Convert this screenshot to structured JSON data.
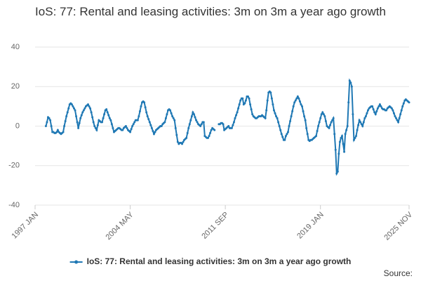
{
  "chart_data": {
    "type": "line",
    "title": "IoS: 77: Rental and leasing activities: 3m on 3m a year ago growth",
    "source": "Source:",
    "categories": [
      "1997 JAN",
      null,
      null,
      null,
      null,
      null,
      null,
      null,
      null,
      null,
      null,
      null,
      null,
      null,
      null,
      null,
      null,
      null,
      null,
      null,
      null,
      null,
      null,
      null,
      null,
      null,
      null,
      null,
      null,
      null,
      null,
      null,
      null,
      null,
      null,
      null,
      null,
      null,
      null,
      null,
      null,
      null,
      null,
      null,
      null,
      null,
      null,
      null,
      null,
      null,
      null,
      null,
      null,
      null,
      null,
      null,
      null,
      null,
      null,
      null,
      null,
      null,
      null,
      null,
      null,
      null,
      null,
      null,
      null,
      null,
      null,
      null,
      null,
      null,
      null,
      null,
      null,
      null,
      null,
      null,
      null,
      null,
      null,
      null,
      null,
      null,
      null,
      null,
      "2004 MAY",
      null,
      null,
      null,
      null,
      null,
      null,
      null,
      null,
      null,
      null,
      null,
      null,
      null,
      null,
      null,
      null,
      null,
      null,
      null,
      null,
      null,
      null,
      null,
      null,
      null,
      null,
      null,
      null,
      null,
      null,
      null,
      null,
      null,
      null,
      null,
      null,
      null,
      null,
      null,
      null,
      null,
      null,
      null,
      null,
      null,
      null,
      null,
      null,
      null,
      null,
      null,
      null,
      null,
      null,
      null,
      null,
      null,
      null,
      null,
      null,
      null,
      null,
      null,
      null,
      null,
      null,
      null,
      null,
      null,
      null,
      null,
      null,
      null,
      null,
      null,
      null,
      null,
      null,
      null,
      null,
      null,
      null,
      null,
      null,
      null,
      null,
      null,
      "2011 SEP",
      null,
      null,
      null,
      null,
      null,
      null,
      null,
      null,
      null,
      null,
      null,
      null,
      null,
      null,
      null,
      null,
      null,
      null,
      null,
      null,
      null,
      null,
      null,
      null,
      null,
      null,
      null,
      null,
      null,
      null,
      null,
      null,
      null,
      null,
      null,
      null,
      null,
      null,
      null,
      null,
      null,
      null,
      null,
      null,
      null,
      null,
      null,
      null,
      null,
      null,
      null,
      null,
      null,
      null,
      null,
      null,
      null,
      null,
      null,
      null,
      null,
      null,
      null,
      null,
      null,
      null,
      null,
      null,
      null,
      null,
      null,
      null,
      null,
      null,
      null,
      null,
      null,
      null,
      null,
      null,
      null,
      null,
      null,
      null,
      null,
      null,
      null,
      "2019 JAN",
      null,
      null,
      null,
      null,
      null,
      null,
      null,
      null,
      null,
      null,
      null,
      null,
      null,
      null,
      null,
      null,
      null,
      null,
      null,
      null,
      null,
      null,
      null,
      null,
      null,
      null,
      null,
      null,
      null,
      null,
      null,
      null,
      null,
      null,
      null,
      null,
      null,
      null,
      null,
      null,
      null,
      null,
      null,
      null,
      null,
      null,
      null,
      null,
      null,
      null,
      null,
      null,
      null,
      null,
      null,
      null,
      null,
      null,
      null,
      null,
      null,
      null,
      null,
      null,
      null,
      null,
      null,
      null,
      null,
      null,
      null,
      null,
      null,
      null,
      null,
      null,
      null,
      null,
      null,
      null,
      null,
      "2025 NOV"
    ],
    "series": [
      {
        "name": "IoS: 77: Rental and leasing activities: 3m on 3m a year ago growth",
        "color": "#1f78b4",
        "values": [
          null,
          null,
          null,
          null,
          null,
          null,
          null,
          null,
          null,
          null,
          0,
          2,
          4.5,
          4,
          3,
          0,
          -3,
          -3,
          -3.5,
          -3.5,
          -3,
          -2,
          -3,
          -3.5,
          -4,
          -3.5,
          -3,
          0,
          2.5,
          5,
          7,
          9,
          11,
          11.5,
          11,
          10,
          9,
          8,
          5,
          2,
          -1,
          1.5,
          4,
          5.5,
          7,
          8,
          9,
          10,
          10.5,
          11,
          10,
          9,
          7,
          4.5,
          2,
          0,
          -1,
          -2,
          0.5,
          3,
          2.5,
          2,
          2,
          4,
          6,
          8,
          8.5,
          7,
          5.5,
          4,
          3,
          1,
          -1,
          -3,
          -2.5,
          -2,
          -1.5,
          -1,
          -1,
          -1.5,
          -2,
          -2,
          -1,
          -0.5,
          0,
          -1,
          -2,
          -2.5,
          -3,
          -1.5,
          0,
          1,
          2,
          3,
          3,
          3,
          5,
          7.5,
          10,
          12,
          12.5,
          12,
          9.5,
          7,
          5,
          3.5,
          2,
          0.5,
          -1,
          -2.5,
          -4,
          -3,
          -2,
          -1.5,
          -1,
          -0.5,
          0,
          0,
          1,
          1.5,
          2,
          4,
          6,
          8,
          8.5,
          8,
          6.5,
          5,
          4,
          3,
          -1,
          -4.5,
          -8,
          -9,
          -8.5,
          -8.5,
          -9,
          -8,
          -7,
          -6.5,
          -6,
          -3.5,
          -1,
          1,
          3,
          5,
          7,
          6,
          4.5,
          3,
          2,
          1,
          0.5,
          0,
          1,
          2,
          2,
          -5,
          -5.5,
          -6,
          -6,
          -5,
          -3.5,
          -2,
          -1,
          -1.5,
          -2,
          null,
          null,
          null,
          1,
          1,
          1.5,
          1.5,
          1,
          -2,
          -1.5,
          -1,
          -0.5,
          0,
          -1,
          -1,
          -1,
          0.5,
          2,
          4,
          5.5,
          7,
          9,
          11,
          13,
          14,
          14,
          11,
          11.5,
          13,
          15,
          15,
          14,
          11,
          8.5,
          6,
          5,
          4.5,
          4,
          4,
          4.5,
          5,
          5,
          5,
          5.5,
          5,
          4.5,
          4,
          8,
          13,
          17,
          17.5,
          17,
          14,
          11,
          8,
          6.5,
          5,
          4,
          2,
          0,
          -2,
          -4,
          -5.5,
          -7,
          -7,
          -5,
          -4,
          -3,
          0,
          2.5,
          5,
          7.5,
          10,
          12,
          13,
          14,
          15,
          14,
          12.5,
          11,
          10,
          7.5,
          5,
          3,
          -1,
          -4,
          -7,
          -7.5,
          -7,
          -7,
          -6.5,
          -6,
          -5.5,
          -5,
          -2.5,
          0,
          2,
          4,
          6,
          7,
          6,
          5,
          2.5,
          0,
          -0.5,
          -1,
          0.5,
          2,
          3,
          4,
          -4,
          -12,
          -24,
          -23,
          -14,
          -8,
          -6,
          -5,
          -9,
          -13,
          -4,
          -2,
          0,
          12,
          23,
          22,
          20,
          6,
          -7,
          -6,
          -5,
          -2,
          0.5,
          3,
          2,
          1,
          0,
          2,
          4,
          5,
          6.5,
          8,
          9,
          9.5,
          10,
          10,
          8.5,
          7,
          6,
          7.5,
          9,
          10,
          11,
          10,
          9,
          8.5,
          8.5,
          8,
          8,
          9,
          9.5,
          10,
          9.5,
          9,
          8,
          6.5,
          5,
          4,
          3,
          2,
          4,
          6,
          8,
          10,
          11.5,
          13,
          13.5,
          13,
          12.5,
          12
        ]
      }
    ],
    "ylim": [
      -40,
      40
    ],
    "yticks": [
      -40,
      -20,
      0,
      20,
      40
    ],
    "grid": true
  }
}
